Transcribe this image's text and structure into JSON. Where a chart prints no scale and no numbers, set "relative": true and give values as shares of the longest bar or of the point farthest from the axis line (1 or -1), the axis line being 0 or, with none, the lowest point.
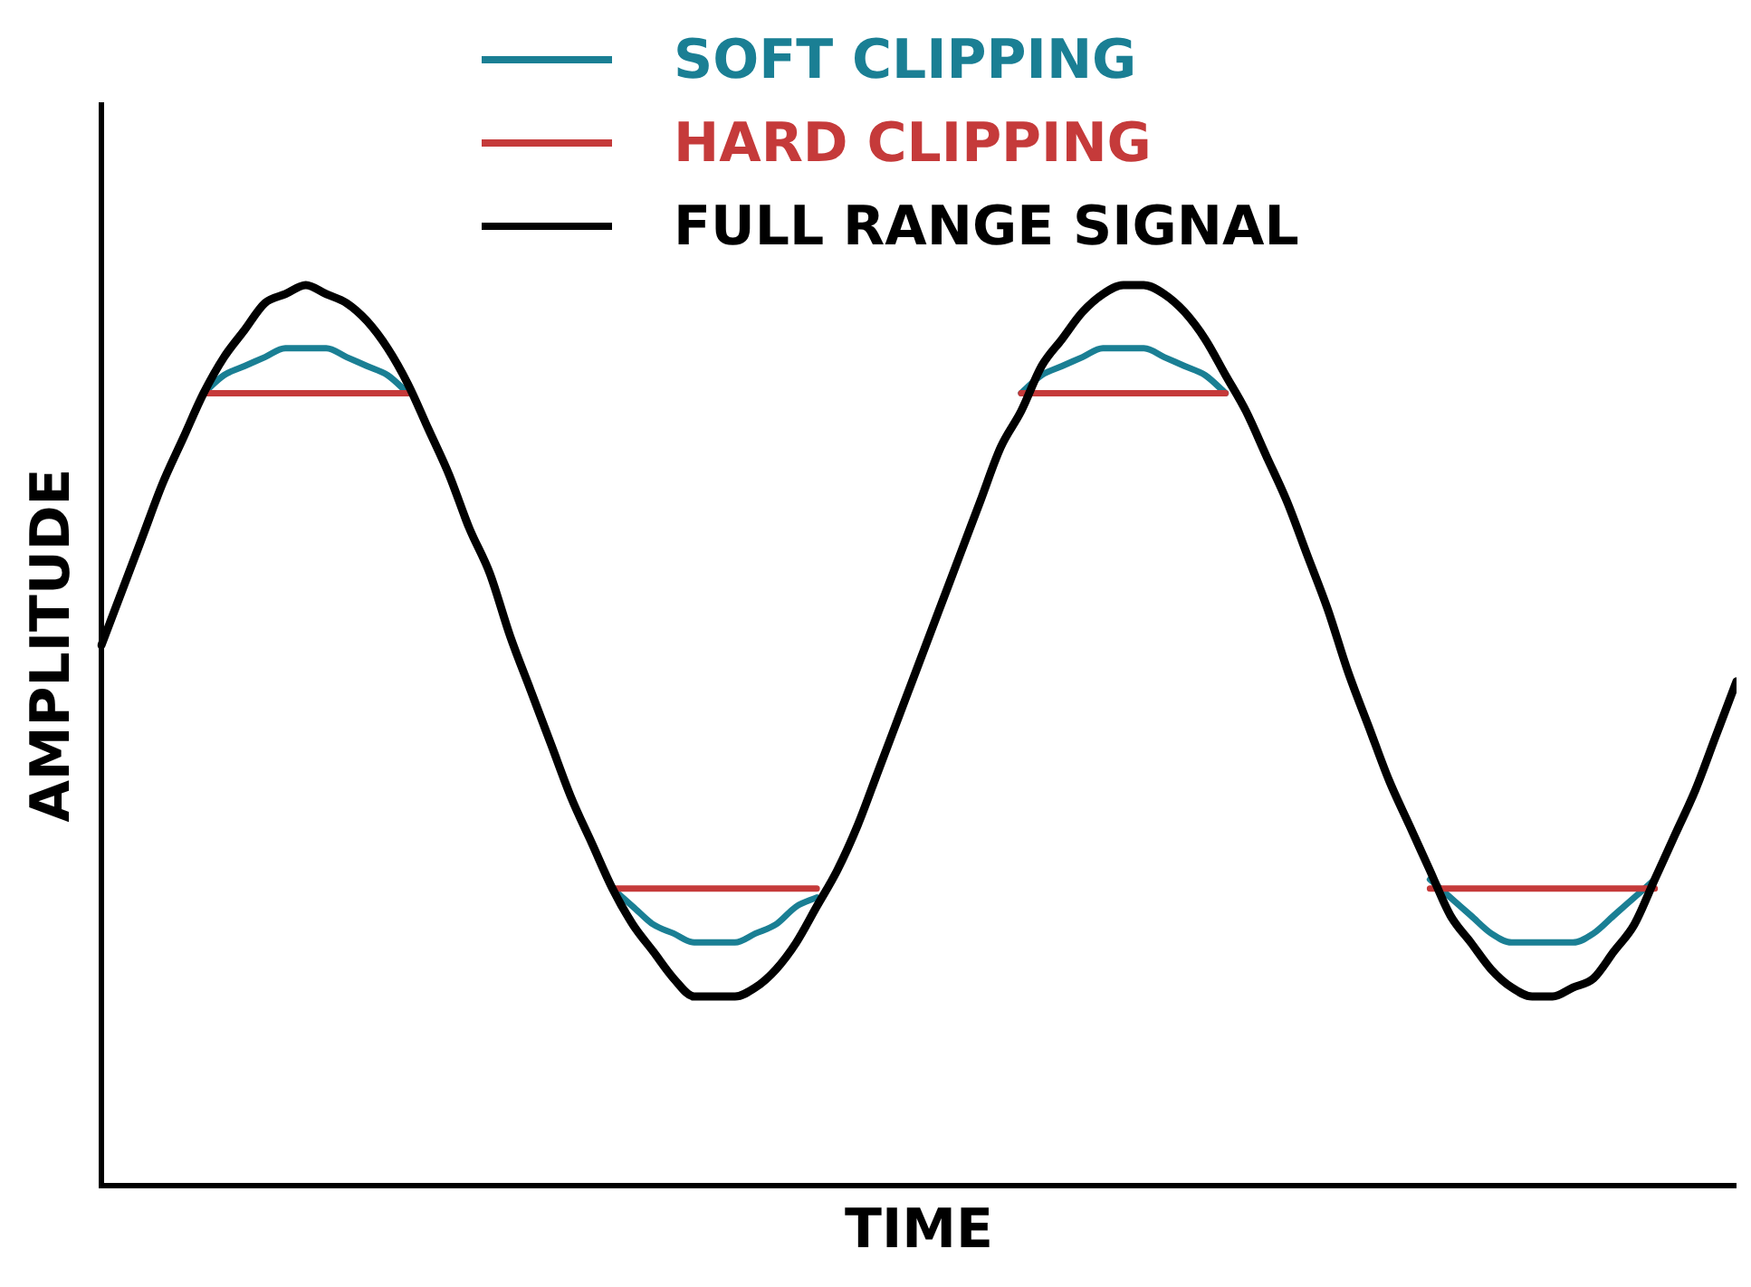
{
  "chart_data": {
    "type": "line",
    "relative": true,
    "xlabel": "TIME",
    "ylabel": "AMPLITUDE",
    "legend": "top",
    "grid": false,
    "marker": "none",
    "line_style": "solid",
    "categories": [
      null,
      null,
      null,
      null,
      null,
      null,
      null,
      null,
      null,
      null,
      null,
      null,
      null,
      null,
      null,
      null,
      null,
      null,
      null,
      null,
      null,
      null,
      null,
      null,
      null,
      null,
      null,
      null,
      null,
      null,
      null,
      null,
      null,
      null,
      null,
      null,
      null,
      null,
      null,
      null,
      null,
      null,
      null,
      null,
      null,
      null,
      null,
      null,
      null,
      null,
      null,
      null,
      null,
      null,
      null,
      null,
      null,
      null,
      null,
      null,
      null,
      null,
      null,
      null,
      null,
      null,
      null,
      null,
      null,
      null,
      null,
      null,
      null,
      null,
      null,
      null,
      null,
      null,
      null,
      null,
      null
    ],
    "series": [
      {
        "name": "SOFT CLIPPING",
        "color": "#1a7f94",
        "values": [
          null,
          null,
          null,
          null,
          null,
          0.88,
          0.9,
          0.91,
          0.92,
          0.93,
          0.93,
          0.93,
          0.92,
          0.91,
          0.9,
          0.88,
          null,
          null,
          null,
          null,
          null,
          null,
          null,
          null,
          null,
          0.33,
          0.31,
          0.29,
          0.28,
          0.27,
          0.27,
          0.27,
          0.28,
          0.29,
          0.31,
          0.32,
          null,
          null,
          null,
          null,
          null,
          null,
          null,
          null,
          null,
          0.88,
          0.9,
          0.91,
          0.92,
          0.93,
          0.93,
          0.93,
          0.92,
          0.91,
          0.9,
          0.88,
          null,
          null,
          null,
          null,
          null,
          null,
          null,
          null,
          null,
          0.34,
          0.32,
          0.3,
          0.28,
          0.27,
          0.27,
          0.27,
          0.27,
          0.28,
          0.3,
          0.32,
          0.34,
          null,
          null,
          null,
          null
        ]
      },
      {
        "name": "HARD CLIPPING",
        "color": "#c53a3a",
        "values": [
          null,
          null,
          null,
          null,
          null,
          0.88,
          0.88,
          0.88,
          0.88,
          0.88,
          0.88,
          0.88,
          0.88,
          0.88,
          0.88,
          0.88,
          null,
          null,
          null,
          null,
          null,
          null,
          null,
          null,
          null,
          0.33,
          0.33,
          0.33,
          0.33,
          0.33,
          0.33,
          0.33,
          0.33,
          0.33,
          0.33,
          0.33,
          null,
          null,
          null,
          null,
          null,
          null,
          null,
          null,
          null,
          0.88,
          0.88,
          0.88,
          0.88,
          0.88,
          0.88,
          0.88,
          0.88,
          0.88,
          0.88,
          0.88,
          null,
          null,
          null,
          null,
          null,
          null,
          null,
          null,
          null,
          0.33,
          0.33,
          0.33,
          0.33,
          0.33,
          0.33,
          0.33,
          0.33,
          0.33,
          0.33,
          0.33,
          0.33,
          null,
          null,
          null,
          null
        ]
      },
      {
        "name": "FULL RANGE SIGNAL",
        "color": "#000000",
        "values": [
          0.6,
          0.66,
          0.72,
          0.78,
          0.83,
          0.88,
          0.92,
          0.95,
          0.98,
          0.99,
          1.0,
          0.99,
          0.98,
          0.96,
          0.93,
          0.89,
          0.84,
          0.79,
          0.73,
          0.68,
          0.61,
          0.55,
          0.49,
          0.43,
          0.38,
          0.33,
          0.29,
          0.26,
          0.23,
          0.21,
          0.21,
          0.21,
          0.22,
          0.24,
          0.27,
          0.31,
          0.35,
          0.4,
          0.46,
          0.52,
          0.58,
          0.64,
          0.7,
          0.76,
          0.82,
          0.86,
          0.91,
          0.94,
          0.97,
          0.99,
          1.0,
          1.0,
          0.99,
          0.97,
          0.94,
          0.9,
          0.86,
          0.81,
          0.76,
          0.7,
          0.64,
          0.57,
          0.51,
          0.45,
          0.4,
          0.35,
          0.3,
          0.27,
          0.24,
          0.22,
          0.21,
          0.21,
          0.22,
          0.23,
          0.26,
          0.29,
          0.34,
          0.39,
          0.44,
          0.5,
          0.56
        ]
      }
    ]
  }
}
